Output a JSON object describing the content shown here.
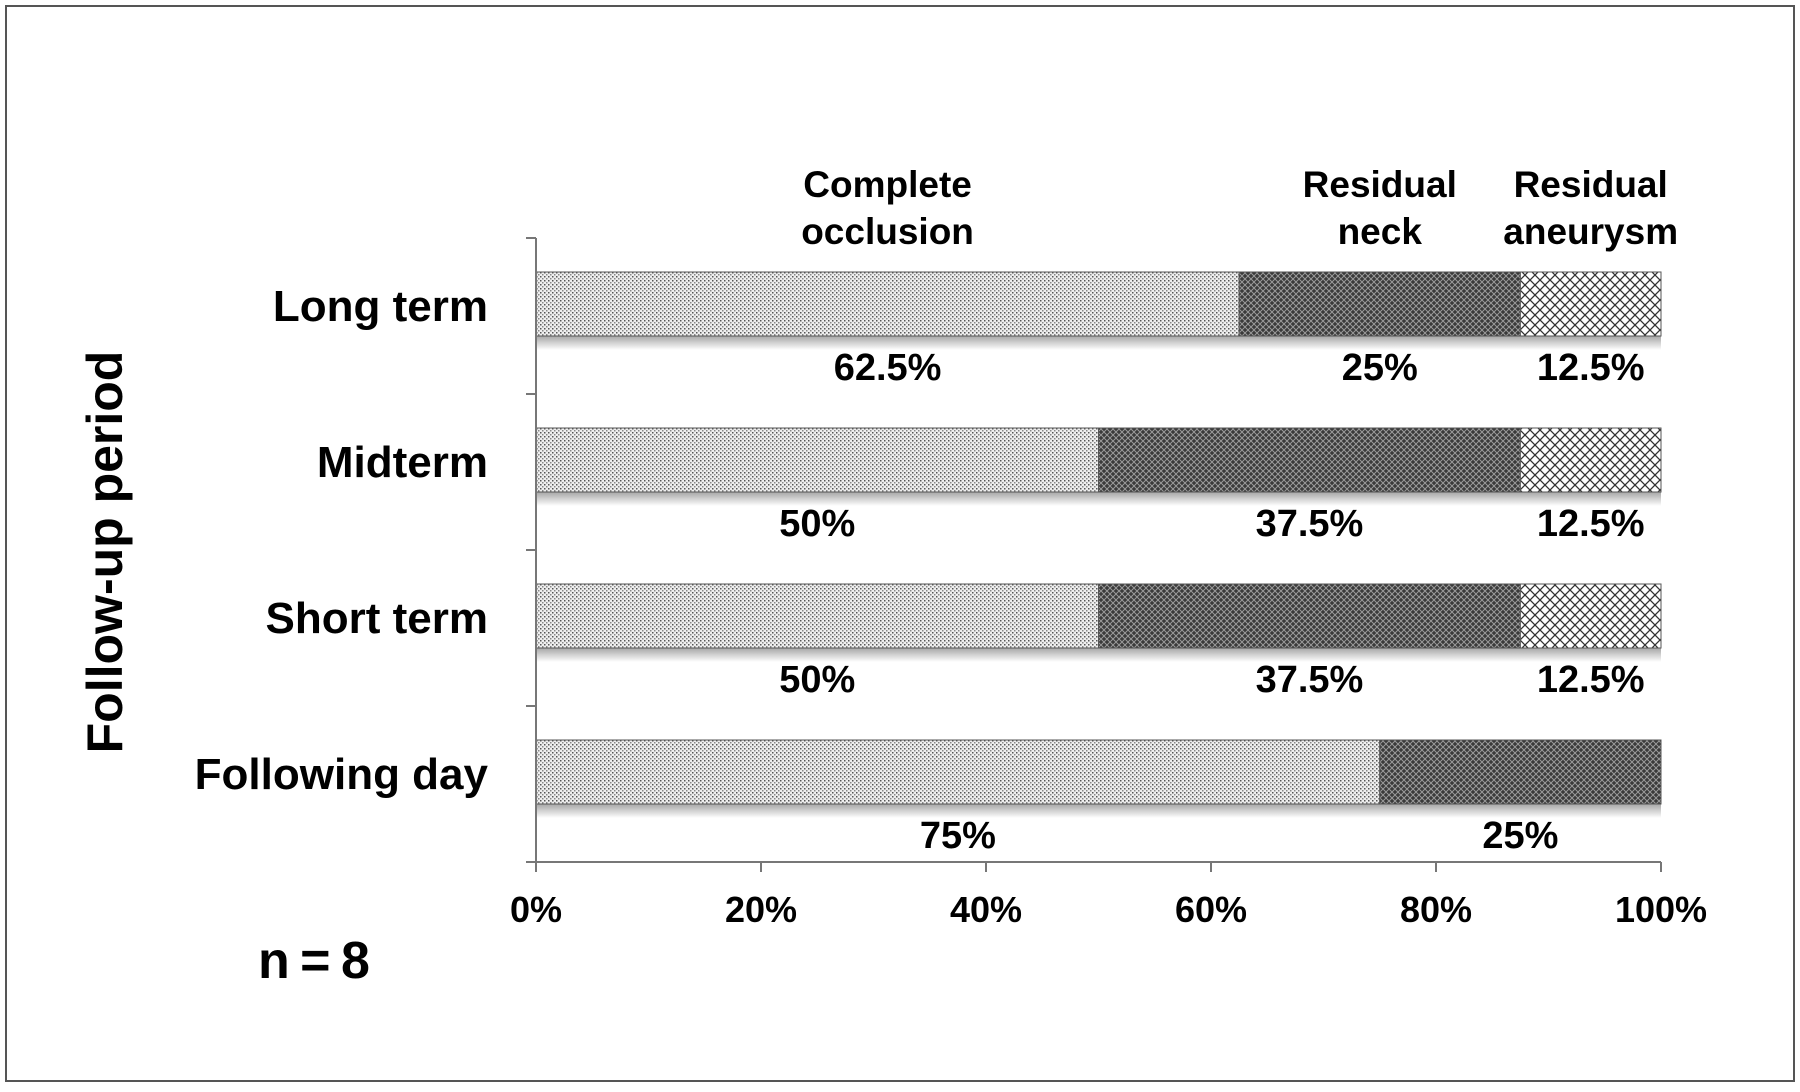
{
  "chart_data": {
    "type": "bar",
    "orientation": "horizontal",
    "stacked": true,
    "ylabel": "Follow-up period",
    "xlim": [
      0,
      100
    ],
    "x_ticks": [
      "0%",
      "20%",
      "40%",
      "60%",
      "80%",
      "100%"
    ],
    "x_tick_values": [
      0,
      20,
      40,
      60,
      80,
      100
    ],
    "categories": [
      "Long term",
      "Midterm",
      "Short term",
      "Following day"
    ],
    "series": [
      {
        "name": "Complete occlusion",
        "name_lines": [
          "Complete",
          "occlusion"
        ],
        "values": [
          62.5,
          50,
          50,
          75
        ],
        "labels": [
          "62.5%",
          "50%",
          "50%",
          "75%"
        ],
        "fill": "#e4e4e4"
      },
      {
        "name": "Residual neck",
        "name_lines": [
          "Residual",
          "neck"
        ],
        "values": [
          25,
          37.5,
          37.5,
          25
        ],
        "labels": [
          "25%",
          "37.5%",
          "37.5%",
          "25%"
        ],
        "fill": "#4a4a4a"
      },
      {
        "name": "Residual aneurysm",
        "name_lines": [
          "Residual",
          "aneurysm"
        ],
        "values": [
          12.5,
          12.5,
          12.5,
          0
        ],
        "labels": [
          "12.5%",
          "12.5%",
          "12.5%",
          ""
        ],
        "fill": "#d8d8d8"
      }
    ],
    "annotation": "n = 8",
    "grid": false,
    "legend": "inline-top"
  }
}
